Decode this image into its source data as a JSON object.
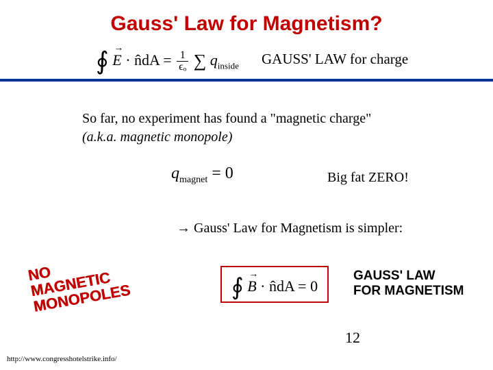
{
  "title": "Gauss' Law for Magnetism?",
  "gauss_charge": {
    "formula_oint": "∮",
    "formula_E": "E",
    "formula_dot_n": " · n̂dA = ",
    "frac_num": "1",
    "frac_den": "ϵₒ",
    "sum": "∑",
    "q_inside": " q",
    "q_inside_sub": "inside",
    "label": "GAUSS' LAW for charge"
  },
  "body": {
    "line1": "So far, no experiment has found a \"magnetic charge\"",
    "line2": "(a.k.a. magnetic monopole)"
  },
  "qmagnet": {
    "q": "q",
    "sub": "magnet",
    "eq": " = 0"
  },
  "bigfat": "Big fat ZERO!",
  "arrow_line": {
    "arrow": "→",
    "text": " Gauss' Law for Magnetism is simpler:"
  },
  "stamp": {
    "l1": "NO",
    "l2": "MAGNETIC",
    "l3": "MONOPOLES"
  },
  "gauss_mag": {
    "formula_oint": "∮",
    "formula_B": "B",
    "formula_rest": " · n̂dA = 0",
    "label_l1": "GAUSS' LAW",
    "label_l2": "FOR MAGNETISM"
  },
  "page_number": "12",
  "footer_url": "http://www.congresshotelstrike.info/",
  "colors": {
    "title_red": "#c00000",
    "divider_blue": "#003399",
    "bg": "#ffffff"
  }
}
